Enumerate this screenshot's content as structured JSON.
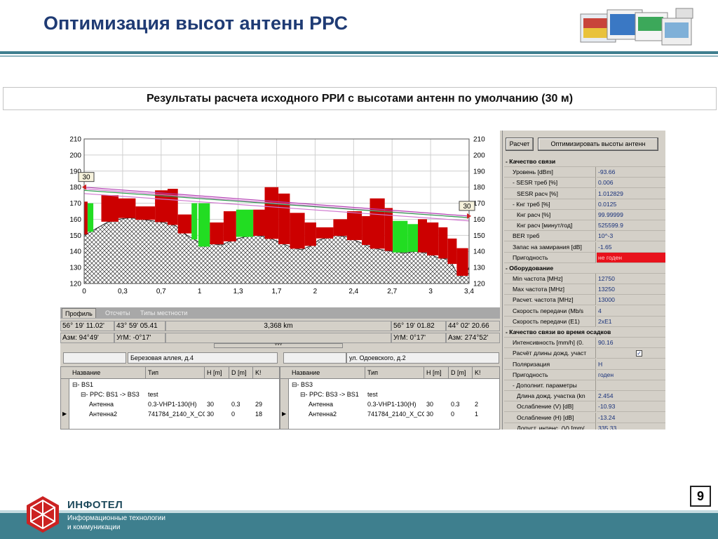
{
  "slide": {
    "title": "Оптимизация высот антенн РРС",
    "subtitle": "Результаты расчета исходного РРИ с высотами антенн по умолчанию (30 м)",
    "page_number": "9"
  },
  "footer": {
    "company": "ИНФОТЕЛ",
    "tagline_1": "Информационные технологии",
    "tagline_2": "и коммуникации"
  },
  "chart_data": {
    "type": "area",
    "x_ticks": [
      "0",
      "0,3",
      "0,7",
      "1",
      "1,3",
      "1,7",
      "2",
      "2,4",
      "2,7",
      "3",
      "3,4"
    ],
    "y_ticks": [
      "120",
      "130",
      "140",
      "150",
      "160",
      "170",
      "180",
      "190",
      "200",
      "210"
    ],
    "xlim": [
      0,
      3.368
    ],
    "ylim": [
      120,
      210
    ],
    "grid": true,
    "left_antenna_label": "30",
    "right_antenna_label": "30",
    "terrain": {
      "x": [
        0,
        0.05,
        0.1,
        0.15,
        0.2,
        0.3,
        0.4,
        0.5,
        0.6,
        0.7,
        0.8,
        0.9,
        1.0,
        1.05,
        1.1,
        1.2,
        1.3,
        1.4,
        1.5,
        1.6,
        1.7,
        1.8,
        1.9,
        2.0,
        2.05,
        2.1,
        2.2,
        2.3,
        2.4,
        2.5,
        2.6,
        2.7,
        2.8,
        2.9,
        3.0,
        3.1,
        3.2,
        3.25,
        3.3,
        3.35,
        3.368
      ],
      "y": [
        150,
        152,
        154,
        156,
        158,
        160,
        161,
        160,
        159,
        158,
        156,
        150,
        146,
        143,
        145,
        144,
        147,
        149,
        150,
        149,
        146,
        143,
        141,
        144,
        147,
        148,
        150,
        149,
        146,
        143,
        141,
        140,
        139,
        140,
        139,
        136,
        135,
        128,
        124,
        128,
        130
      ]
    },
    "clutter": [
      {
        "x0": 0.0,
        "x1": 0.03,
        "top": 171,
        "kind": "buildings"
      },
      {
        "x0": 0.03,
        "x1": 0.08,
        "top": 170,
        "kind": "forest"
      },
      {
        "x0": 0.15,
        "x1": 0.3,
        "top": 175,
        "kind": "buildings"
      },
      {
        "x0": 0.3,
        "x1": 0.45,
        "top": 173,
        "kind": "buildings"
      },
      {
        "x0": 0.45,
        "x1": 0.62,
        "top": 168,
        "kind": "buildings"
      },
      {
        "x0": 0.62,
        "x1": 0.73,
        "top": 178,
        "kind": "buildings"
      },
      {
        "x0": 0.73,
        "x1": 0.82,
        "top": 179,
        "kind": "buildings"
      },
      {
        "x0": 0.82,
        "x1": 0.94,
        "top": 163,
        "kind": "buildings"
      },
      {
        "x0": 0.94,
        "x1": 0.99,
        "top": 170,
        "kind": "forest"
      },
      {
        "x0": 1.0,
        "x1": 1.1,
        "top": 170,
        "kind": "forest"
      },
      {
        "x0": 1.1,
        "x1": 1.22,
        "top": 158,
        "kind": "buildings"
      },
      {
        "x0": 1.22,
        "x1": 1.33,
        "top": 165,
        "kind": "buildings"
      },
      {
        "x0": 1.33,
        "x1": 1.48,
        "top": 166,
        "kind": "forest"
      },
      {
        "x0": 1.48,
        "x1": 1.58,
        "top": 166,
        "kind": "buildings"
      },
      {
        "x0": 1.58,
        "x1": 1.7,
        "top": 180,
        "kind": "buildings"
      },
      {
        "x0": 1.7,
        "x1": 1.8,
        "top": 176,
        "kind": "buildings"
      },
      {
        "x0": 1.8,
        "x1": 1.93,
        "top": 164,
        "kind": "buildings"
      },
      {
        "x0": 1.93,
        "x1": 2.03,
        "top": 158,
        "kind": "buildings"
      },
      {
        "x0": 2.03,
        "x1": 2.18,
        "top": 155,
        "kind": "buildings"
      },
      {
        "x0": 2.18,
        "x1": 2.3,
        "top": 160,
        "kind": "buildings"
      },
      {
        "x0": 2.3,
        "x1": 2.43,
        "top": 165,
        "kind": "buildings"
      },
      {
        "x0": 2.43,
        "x1": 2.5,
        "top": 162,
        "kind": "buildings"
      },
      {
        "x0": 2.5,
        "x1": 2.63,
        "top": 173,
        "kind": "buildings"
      },
      {
        "x0": 2.63,
        "x1": 2.7,
        "top": 167,
        "kind": "buildings"
      },
      {
        "x0": 2.7,
        "x1": 2.83,
        "top": 159,
        "kind": "forest"
      },
      {
        "x0": 2.83,
        "x1": 2.92,
        "top": 157,
        "kind": "forest"
      },
      {
        "x0": 2.92,
        "x1": 3.0,
        "top": 160,
        "kind": "buildings"
      },
      {
        "x0": 3.0,
        "x1": 3.1,
        "top": 158,
        "kind": "buildings"
      },
      {
        "x0": 3.1,
        "x1": 3.18,
        "top": 155,
        "kind": "buildings"
      },
      {
        "x0": 3.18,
        "x1": 3.26,
        "top": 148,
        "kind": "buildings"
      },
      {
        "x0": 3.26,
        "x1": 3.36,
        "top": 142,
        "kind": "buildings"
      }
    ],
    "los_lines": [
      {
        "y0": 180,
        "y1": 162,
        "color": "#b33db3"
      },
      {
        "y0": 179,
        "y1": 161,
        "color": "#d07ad0"
      },
      {
        "y0": 176,
        "y1": 159,
        "color": "#d07ad0"
      },
      {
        "y0": 178,
        "y1": 161,
        "color": "#2e9e4e"
      }
    ]
  },
  "tabs": [
    "Профиль",
    "Отсчеты",
    "Типы местности"
  ],
  "coords": {
    "left_lat": "56° 19' 11.02'",
    "left_lon": "43° 59' 05.41",
    "distance": "3,368 km",
    "right_lat": "56° 19' 01.82",
    "right_lon": "44° 02' 20.66",
    "left_az": "Азм: 94°49'",
    "left_elev": "УгМ: -0°17'",
    "right_elev": "УгМ: 0°17'",
    "right_az": "Азм: 274°52'"
  },
  "sites": {
    "left_address": "Березовая аллея, д.4",
    "right_address": "ул. Одоевского, д.2"
  },
  "grid_columns": [
    "Название",
    "Тип",
    "H [m]",
    "D [m]",
    "K!"
  ],
  "left_grid": [
    {
      "indent": 1,
      "name": "⊟- BS1",
      "type": "",
      "h": "",
      "d": "",
      "k": ""
    },
    {
      "indent": 2,
      "name": "⊟- РРС: BS1 -> BS3",
      "type": "test",
      "h": "",
      "d": "",
      "k": ""
    },
    {
      "indent": 3,
      "name": "Антенна",
      "type": "0.3-VHP1-130(H)",
      "h": "30",
      "d": "0.3",
      "k": "29"
    },
    {
      "indent": 3,
      "name": "Антенна2",
      "type": "741784_2140_X_CC",
      "h": "30",
      "d": "0",
      "k": "18"
    }
  ],
  "right_grid": [
    {
      "indent": 1,
      "name": "⊟- BS3",
      "type": "",
      "h": "",
      "d": "",
      "k": ""
    },
    {
      "indent": 2,
      "name": "⊟- РРС: BS3 -> BS1",
      "type": "test",
      "h": "",
      "d": "",
      "k": ""
    },
    {
      "indent": 3,
      "name": "Антенна",
      "type": "0.3-VHP1-130(H)",
      "h": "30",
      "d": "0.3",
      "k": "2"
    },
    {
      "indent": 3,
      "name": "Антенна2",
      "type": "741784_2140_X_CC",
      "h": "30",
      "d": "0",
      "k": "1"
    }
  ],
  "panel": {
    "calc_button": "Расчет",
    "optimize_button": "Оптимизировать высоты антенн",
    "rows": [
      {
        "kind": "section",
        "key": "- Качество связи",
        "value": ""
      },
      {
        "kind": "row",
        "key": "Уровень [dBm]",
        "value": "-93.66",
        "indent": 1
      },
      {
        "kind": "row",
        "key": "- SESR треб [%]",
        "value": "0.006",
        "indent": 1
      },
      {
        "kind": "row",
        "key": "SESR расч [%]",
        "value": "1.012829",
        "indent": 2
      },
      {
        "kind": "row",
        "key": "- Кнг треб [%]",
        "value": "0.0125",
        "indent": 1
      },
      {
        "kind": "row",
        "key": "Кнг расч [%]",
        "value": "99.99999",
        "indent": 2
      },
      {
        "kind": "row",
        "key": "Кнг расч [минут/год]",
        "value": "525599.9",
        "indent": 2
      },
      {
        "kind": "row",
        "key": "BER треб",
        "value": "10^-3",
        "indent": 1
      },
      {
        "kind": "row",
        "key": "Запас на замирания [dB]",
        "value": "-1.65",
        "indent": 1
      },
      {
        "kind": "bad",
        "key": "Пригодность",
        "value": "не годен",
        "indent": 1
      },
      {
        "kind": "section",
        "key": "- Оборудование",
        "value": ""
      },
      {
        "kind": "row",
        "key": "Min частота [MHz]",
        "value": "12750",
        "indent": 1
      },
      {
        "kind": "row",
        "key": "Max частота [MHz]",
        "value": "13250",
        "indent": 1
      },
      {
        "kind": "row",
        "key": "Расчет. частота [MHz]",
        "value": "13000",
        "indent": 1
      },
      {
        "kind": "row",
        "key": "Скорость передачи (Mb/s",
        "value": "4",
        "indent": 1
      },
      {
        "kind": "row",
        "key": "Скорость передачи (E1)",
        "value": "2xE1",
        "indent": 1
      },
      {
        "kind": "section",
        "key": "- Качество связи во время осадков",
        "value": ""
      },
      {
        "kind": "row",
        "key": "Интенсивность [mm/h] (0.",
        "value": "90.16",
        "indent": 1
      },
      {
        "kind": "check",
        "key": "Расчёт длины дожд. участ",
        "value": "✓",
        "indent": 1
      },
      {
        "kind": "row",
        "key": "Поляризация",
        "value": "H",
        "indent": 1
      },
      {
        "kind": "row",
        "key": "Пригодность",
        "value": "годен",
        "indent": 1
      },
      {
        "kind": "row",
        "key": "- Дополнит. параметры",
        "value": "",
        "indent": 1
      },
      {
        "kind": "row",
        "key": "Длина дожд. участка (kn",
        "value": "2.454",
        "indent": 2
      },
      {
        "kind": "row",
        "key": "Ослабление (V) [dB]",
        "value": "-10.93",
        "indent": 2
      },
      {
        "kind": "row",
        "key": "Ослабление (H) [dB]",
        "value": "-13.24",
        "indent": 2
      },
      {
        "kind": "row",
        "key": "Допуст. интенс. (V) [mm/",
        "value": "335.33",
        "indent": 2
      }
    ]
  },
  "colors": {
    "buildings": "#cc0000",
    "forest": "#22dd22",
    "title": "#1f3b74",
    "footer": "#3e7f8e",
    "unsuitable": "#e8121c"
  }
}
